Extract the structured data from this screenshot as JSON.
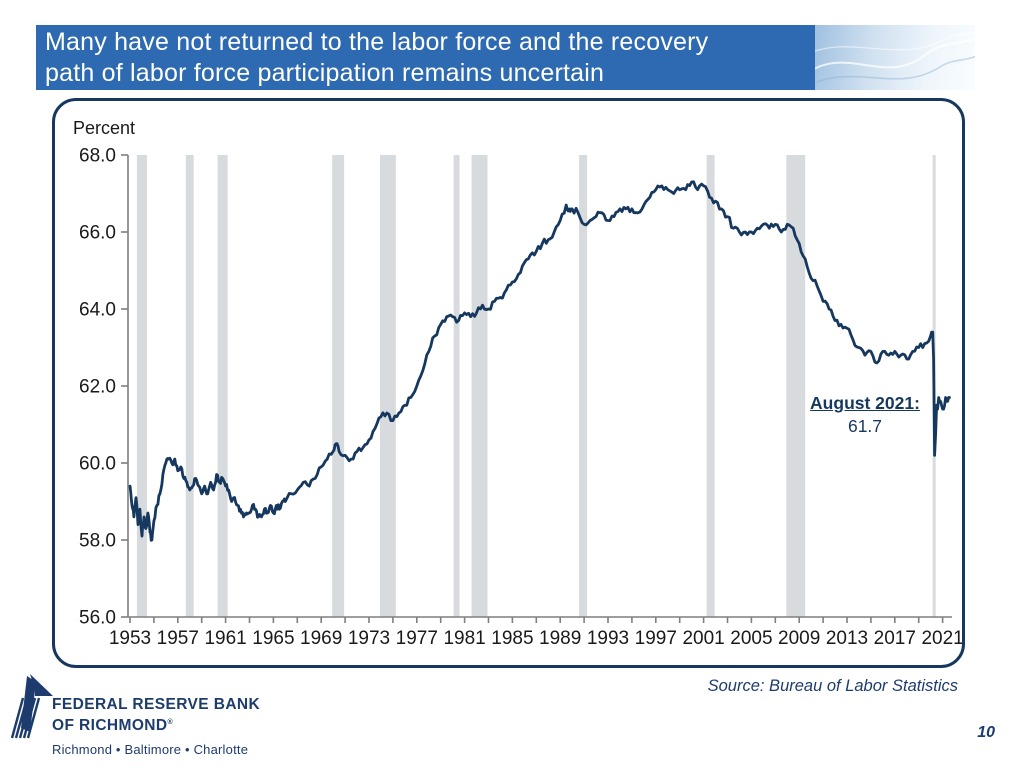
{
  "colors": {
    "banner_blue": "#2d6ab1",
    "navy": "#16385f",
    "logo_navy": "#1d3c6d",
    "recession_gray": "#d8dbde",
    "axis_gray": "#7f7f7f",
    "label_black": "#1a1a1a"
  },
  "title": {
    "lines": [
      "Many have not returned to the labor force and the recovery",
      "path of labor force participation remains uncertain"
    ]
  },
  "footer": {
    "source": "Source: Bureau of Labor Statistics",
    "page_number": "10",
    "logo_line1": "FEDERAL RESERVE BANK",
    "logo_line2": "OF RICHMOND",
    "logo_trademark": "®",
    "logo_cities": "Richmond • Baltimore • Charlotte"
  },
  "chart_data": {
    "type": "line",
    "title": "",
    "ylabel": "Percent",
    "xlabel": "",
    "ylim": [
      56.0,
      68.0
    ],
    "xlim": [
      1953,
      2021.7
    ],
    "grid": false,
    "y_ticks": [
      {
        "value": 68.0,
        "label": "68.0"
      },
      {
        "value": 66.0,
        "label": "66.0"
      },
      {
        "value": 64.0,
        "label": "64.0"
      },
      {
        "value": 62.0,
        "label": "62.0"
      },
      {
        "value": 60.0,
        "label": "60.0"
      },
      {
        "value": 58.0,
        "label": "58.0"
      },
      {
        "value": 56.0,
        "label": "56.0"
      }
    ],
    "x_minor_tick_step_years": 2,
    "x_label_years": [
      1953,
      1957,
      1961,
      1965,
      1969,
      1973,
      1977,
      1981,
      1985,
      1989,
      1993,
      1997,
      2001,
      2005,
      2009,
      2013,
      2017,
      2021
    ],
    "recession_bands": [
      [
        1953.58,
        1954.42
      ],
      [
        1957.67,
        1958.33
      ],
      [
        1960.33,
        1961.17
      ],
      [
        1969.92,
        1970.92
      ],
      [
        1973.92,
        1975.25
      ],
      [
        1980.08,
        1980.58
      ],
      [
        1981.58,
        1982.92
      ],
      [
        1990.58,
        1991.25
      ],
      [
        2001.25,
        2001.92
      ],
      [
        2007.92,
        2009.5
      ],
      [
        2020.17,
        2020.42
      ]
    ],
    "annotation": {
      "label": "August 2021:",
      "value": "61.7",
      "x": 2021.58,
      "y": 61.7
    },
    "series": [
      {
        "name": "Labor force participation rate (percent)",
        "points": [
          [
            1953.0,
            59.4
          ],
          [
            1953.17,
            58.9
          ],
          [
            1953.33,
            58.6
          ],
          [
            1953.5,
            59.1
          ],
          [
            1953.67,
            58.4
          ],
          [
            1953.83,
            58.8
          ],
          [
            1954.0,
            58.1
          ],
          [
            1954.17,
            58.6
          ],
          [
            1954.33,
            58.3
          ],
          [
            1954.5,
            58.7
          ],
          [
            1954.67,
            58.2
          ],
          [
            1954.83,
            58.0
          ],
          [
            1955.0,
            58.5
          ],
          [
            1955.25,
            58.9
          ],
          [
            1955.5,
            59.2
          ],
          [
            1955.75,
            59.7
          ],
          [
            1956.0,
            60.0
          ],
          [
            1956.25,
            60.1
          ],
          [
            1956.5,
            60.0
          ],
          [
            1956.75,
            60.1
          ],
          [
            1957.0,
            59.8
          ],
          [
            1957.25,
            59.9
          ],
          [
            1957.5,
            59.6
          ],
          [
            1957.75,
            59.5
          ],
          [
            1958.0,
            59.3
          ],
          [
            1958.25,
            59.4
          ],
          [
            1958.5,
            59.6
          ],
          [
            1958.75,
            59.4
          ],
          [
            1959.0,
            59.2
          ],
          [
            1959.25,
            59.4
          ],
          [
            1959.5,
            59.2
          ],
          [
            1959.75,
            59.5
          ],
          [
            1960.0,
            59.3
          ],
          [
            1960.25,
            59.7
          ],
          [
            1960.5,
            59.5
          ],
          [
            1960.75,
            59.6
          ],
          [
            1961.0,
            59.4
          ],
          [
            1961.25,
            59.3
          ],
          [
            1961.5,
            59.0
          ],
          [
            1961.75,
            59.1
          ],
          [
            1962.0,
            58.9
          ],
          [
            1962.25,
            58.8
          ],
          [
            1962.5,
            58.6
          ],
          [
            1962.75,
            58.7
          ],
          [
            1963.0,
            58.7
          ],
          [
            1963.25,
            58.9
          ],
          [
            1963.5,
            58.8
          ],
          [
            1963.75,
            58.6
          ],
          [
            1964.0,
            58.6
          ],
          [
            1964.25,
            58.8
          ],
          [
            1964.5,
            58.7
          ],
          [
            1964.75,
            58.9
          ],
          [
            1965.0,
            58.7
          ],
          [
            1965.25,
            58.9
          ],
          [
            1965.5,
            58.8
          ],
          [
            1965.75,
            59.0
          ],
          [
            1966.0,
            59.0
          ],
          [
            1966.5,
            59.2
          ],
          [
            1967.0,
            59.3
          ],
          [
            1967.5,
            59.5
          ],
          [
            1968.0,
            59.4
          ],
          [
            1968.5,
            59.6
          ],
          [
            1969.0,
            59.9
          ],
          [
            1969.5,
            60.1
          ],
          [
            1970.0,
            60.3
          ],
          [
            1970.25,
            60.5
          ],
          [
            1970.5,
            60.3
          ],
          [
            1971.0,
            60.2
          ],
          [
            1971.5,
            60.1
          ],
          [
            1972.0,
            60.3
          ],
          [
            1972.5,
            60.4
          ],
          [
            1973.0,
            60.6
          ],
          [
            1973.5,
            60.9
          ],
          [
            1974.0,
            61.2
          ],
          [
            1974.5,
            61.3
          ],
          [
            1975.0,
            61.1
          ],
          [
            1975.5,
            61.3
          ],
          [
            1976.0,
            61.5
          ],
          [
            1976.5,
            61.7
          ],
          [
            1977.0,
            62.0
          ],
          [
            1977.5,
            62.4
          ],
          [
            1978.0,
            62.9
          ],
          [
            1978.5,
            63.3
          ],
          [
            1979.0,
            63.6
          ],
          [
            1979.5,
            63.8
          ],
          [
            1980.0,
            63.8
          ],
          [
            1980.5,
            63.7
          ],
          [
            1981.0,
            63.9
          ],
          [
            1981.5,
            63.8
          ],
          [
            1982.0,
            63.9
          ],
          [
            1982.5,
            64.1
          ],
          [
            1983.0,
            64.0
          ],
          [
            1983.5,
            64.2
          ],
          [
            1984.0,
            64.3
          ],
          [
            1984.5,
            64.5
          ],
          [
            1985.0,
            64.7
          ],
          [
            1985.5,
            64.9
          ],
          [
            1986.0,
            65.2
          ],
          [
            1986.5,
            65.4
          ],
          [
            1987.0,
            65.5
          ],
          [
            1987.5,
            65.7
          ],
          [
            1988.0,
            65.8
          ],
          [
            1988.5,
            66.0
          ],
          [
            1989.0,
            66.3
          ],
          [
            1989.5,
            66.7
          ],
          [
            1989.75,
            66.6
          ],
          [
            1990.0,
            66.6
          ],
          [
            1990.5,
            66.5
          ],
          [
            1991.0,
            66.2
          ],
          [
            1991.5,
            66.3
          ],
          [
            1992.0,
            66.4
          ],
          [
            1992.5,
            66.5
          ],
          [
            1993.0,
            66.3
          ],
          [
            1993.5,
            66.4
          ],
          [
            1994.0,
            66.6
          ],
          [
            1994.5,
            66.6
          ],
          [
            1995.0,
            66.6
          ],
          [
            1995.5,
            66.5
          ],
          [
            1996.0,
            66.7
          ],
          [
            1996.5,
            66.9
          ],
          [
            1997.0,
            67.1
          ],
          [
            1997.5,
            67.2
          ],
          [
            1998.0,
            67.1
          ],
          [
            1998.5,
            67.0
          ],
          [
            1999.0,
            67.1
          ],
          [
            1999.5,
            67.1
          ],
          [
            2000.0,
            67.3
          ],
          [
            2000.5,
            67.1
          ],
          [
            2001.0,
            67.2
          ],
          [
            2001.5,
            66.9
          ],
          [
            2002.0,
            66.8
          ],
          [
            2002.5,
            66.6
          ],
          [
            2003.0,
            66.4
          ],
          [
            2003.5,
            66.1
          ],
          [
            2004.0,
            66.0
          ],
          [
            2004.5,
            66.0
          ],
          [
            2005.0,
            66.0
          ],
          [
            2005.5,
            66.1
          ],
          [
            2006.0,
            66.2
          ],
          [
            2006.5,
            66.1
          ],
          [
            2007.0,
            66.2
          ],
          [
            2007.5,
            66.0
          ],
          [
            2008.0,
            66.2
          ],
          [
            2008.5,
            66.1
          ],
          [
            2009.0,
            65.7
          ],
          [
            2009.5,
            65.3
          ],
          [
            2010.0,
            64.8
          ],
          [
            2010.5,
            64.6
          ],
          [
            2011.0,
            64.2
          ],
          [
            2011.5,
            64.0
          ],
          [
            2012.0,
            63.7
          ],
          [
            2012.5,
            63.6
          ],
          [
            2013.0,
            63.5
          ],
          [
            2013.5,
            63.2
          ],
          [
            2014.0,
            63.0
          ],
          [
            2014.5,
            62.8
          ],
          [
            2015.0,
            62.9
          ],
          [
            2015.5,
            62.6
          ],
          [
            2016.0,
            62.9
          ],
          [
            2016.5,
            62.8
          ],
          [
            2017.0,
            62.9
          ],
          [
            2017.5,
            62.8
          ],
          [
            2018.0,
            62.7
          ],
          [
            2018.5,
            62.9
          ],
          [
            2019.0,
            63.0
          ],
          [
            2019.5,
            63.1
          ],
          [
            2020.0,
            63.3
          ],
          [
            2020.08,
            63.4
          ],
          [
            2020.17,
            63.4
          ],
          [
            2020.25,
            62.7
          ],
          [
            2020.33,
            60.2
          ],
          [
            2020.42,
            60.8
          ],
          [
            2020.5,
            61.5
          ],
          [
            2020.58,
            61.4
          ],
          [
            2020.67,
            61.7
          ],
          [
            2020.75,
            61.6
          ],
          [
            2020.83,
            61.6
          ],
          [
            2020.92,
            61.5
          ],
          [
            2021.0,
            61.4
          ],
          [
            2021.08,
            61.4
          ],
          [
            2021.17,
            61.5
          ],
          [
            2021.25,
            61.7
          ],
          [
            2021.33,
            61.6
          ],
          [
            2021.42,
            61.6
          ],
          [
            2021.5,
            61.7
          ],
          [
            2021.58,
            61.7
          ]
        ]
      }
    ]
  }
}
